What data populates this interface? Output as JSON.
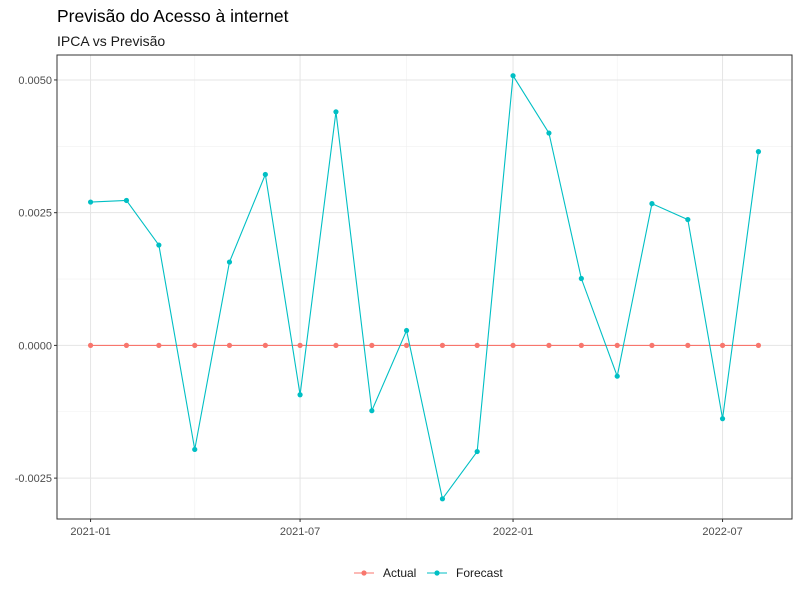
{
  "chart_data": {
    "type": "line",
    "title": "Previsão do Acesso à internet",
    "subtitle": "IPCA vs Previsão",
    "xlabel": "",
    "ylabel": "",
    "x": [
      "2021-01-01",
      "2021-02-01",
      "2021-03-01",
      "2021-04-01",
      "2021-05-01",
      "2021-06-01",
      "2021-07-01",
      "2021-08-01",
      "2021-09-01",
      "2021-10-01",
      "2021-11-01",
      "2021-12-01",
      "2022-01-01",
      "2022-02-01",
      "2022-03-01",
      "2022-04-01",
      "2022-05-01",
      "2022-06-01",
      "2022-07-01",
      "2022-08-01"
    ],
    "series": [
      {
        "name": "Actual",
        "color": "#F8766D",
        "values": [
          0,
          0,
          0,
          0,
          0,
          0,
          0,
          0,
          0,
          0,
          0,
          0,
          0,
          0,
          0,
          0,
          0,
          0,
          0,
          0
        ]
      },
      {
        "name": "Forecast",
        "color": "#00BFC4",
        "values": [
          0.0027,
          0.00273,
          0.00189,
          -0.00196,
          0.00157,
          0.00322,
          -0.00093,
          0.0044,
          -0.00123,
          0.00028,
          -0.00289,
          -0.002,
          0.00508,
          0.004,
          0.00126,
          -0.00058,
          0.00267,
          0.00237,
          -0.00138,
          0.00365
        ]
      }
    ],
    "x_ticks": [
      "2021-01",
      "2021-07",
      "2022-01",
      "2022-07"
    ],
    "y_ticks": [
      "-0.0025",
      "0.0000",
      "0.0025",
      "0.0050"
    ],
    "y_tick_values": [
      -0.0025,
      0,
      0.0025,
      0.005
    ],
    "x_tick_dates": [
      "2021-01-01",
      "2021-07-01",
      "2022-01-01",
      "2022-07-01"
    ],
    "xlim": [
      "2020-12-03",
      "2022-08-30"
    ],
    "ylim": [
      -0.00327,
      0.00547
    ],
    "grid": true,
    "legend_position": "bottom"
  }
}
